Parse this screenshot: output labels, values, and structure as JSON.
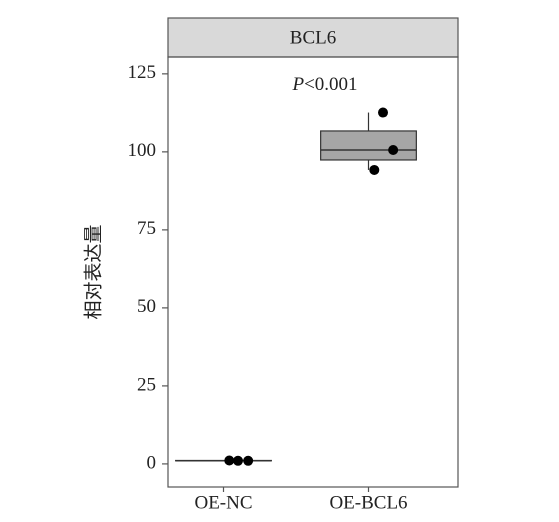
{
  "chart_data": {
    "type": "box",
    "strip_title": "BCL6",
    "y_label": "相对表达量",
    "annotation": [
      "P",
      "<0.001"
    ],
    "categories": [
      "OE-NC",
      "OE-BCL6"
    ],
    "boxes": [
      {
        "whisker_low": 0.8,
        "q1": 1.0,
        "median": 1.0,
        "q3": 1.1,
        "whisker_high": 1.2,
        "points": [
          1.0,
          1.0,
          1.1
        ]
      },
      {
        "whisker_low": 94.2,
        "q1": 97.4,
        "median": 100.6,
        "q3": 106.7,
        "whisker_high": 112.6,
        "points": [
          112.6,
          100.6,
          94.2
        ]
      }
    ],
    "box_color": "#a6a6a6",
    "point_color": "#000000",
    "ylim": [
      -7.4,
      130.4
    ],
    "yticks": [
      0,
      25,
      50,
      75,
      100,
      125
    ],
    "grid": false
  }
}
